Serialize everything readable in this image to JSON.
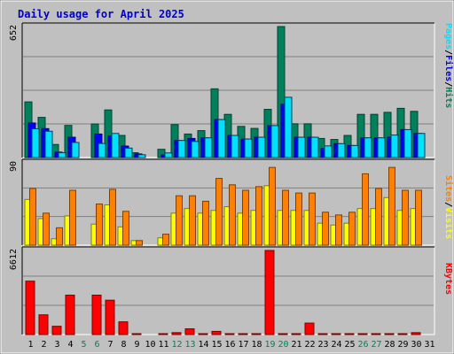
{
  "title": "Daily usage for April 2025",
  "colors": {
    "background": "#c0c0c0",
    "frame": "#808080",
    "title": "#0000ff",
    "grid": "#808080",
    "hits": "#00805c",
    "files": "#0000ff",
    "pages": "#00e0ff",
    "visits": "#ffff00",
    "sites": "#ff8000",
    "kbytes": "#ff0000",
    "weekend_day": "#00805c",
    "weekday": "#000000"
  },
  "chart_data": [
    {
      "type": "bar",
      "panel": "hits-files-pages",
      "ylabel_max": "652",
      "ylim": [
        0,
        652
      ],
      "legend": [
        "Pages",
        "Files",
        "Hits"
      ],
      "categories": [
        "1",
        "2",
        "3",
        "4",
        "5",
        "6",
        "7",
        "8",
        "9",
        "10",
        "11",
        "12",
        "13",
        "14",
        "15",
        "16",
        "17",
        "18",
        "19",
        "20",
        "21",
        "22",
        "23",
        "24",
        "25",
        "26",
        "27",
        "28",
        "29",
        "30",
        "31"
      ],
      "series": [
        {
          "name": "Hits",
          "values": [
            277,
            200,
            65,
            160,
            0,
            167,
            237,
            110,
            24,
            0,
            41,
            164,
            117,
            134,
            342,
            215,
            155,
            145,
            240,
            652,
            168,
            168,
            95,
            90,
            110,
            215,
            215,
            225,
            245,
            230,
            0
          ]
        },
        {
          "name": "Files",
          "values": [
            172,
            144,
            27,
            101,
            0,
            117,
            107,
            57,
            18,
            0,
            13,
            85,
            95,
            98,
            189,
            110,
            92,
            101,
            159,
            265,
            101,
            101,
            45,
            69,
            60,
            98,
            98,
            101,
            139,
            120,
            0
          ]
        },
        {
          "name": "Pages",
          "values": [
            143,
            131,
            24,
            75,
            0,
            70,
            120,
            47,
            14,
            0,
            23,
            85,
            80,
            98,
            189,
            110,
            92,
            101,
            159,
            300,
            101,
            101,
            58,
            69,
            60,
            98,
            98,
            112,
            139,
            120,
            0
          ]
        }
      ]
    },
    {
      "type": "bar",
      "panel": "visits-sites",
      "ylabel_max": "90",
      "ylim": [
        0,
        90
      ],
      "legend": [
        "Sites",
        "Visits"
      ],
      "categories": [
        "1",
        "2",
        "3",
        "4",
        "5",
        "6",
        "7",
        "8",
        "9",
        "10",
        "11",
        "12",
        "13",
        "14",
        "15",
        "16",
        "17",
        "18",
        "19",
        "20",
        "21",
        "22",
        "23",
        "24",
        "25",
        "26",
        "27",
        "28",
        "29",
        "30",
        "31"
      ],
      "series": [
        {
          "name": "Visits",
          "values": [
            50,
            29,
            7,
            32,
            0,
            23,
            44,
            20,
            5,
            0,
            8,
            35,
            40,
            35,
            38,
            42,
            35,
            38,
            65,
            38,
            38,
            38,
            24,
            22,
            24,
            40,
            40,
            52,
            38,
            40,
            0
          ]
        },
        {
          "name": "Sites",
          "values": [
            62,
            35,
            19,
            60,
            0,
            45,
            61,
            37,
            5,
            0,
            12,
            54,
            54,
            48,
            73,
            66,
            60,
            64,
            85,
            60,
            57,
            57,
            36,
            33,
            36,
            78,
            62,
            85,
            60,
            60,
            0
          ]
        }
      ]
    },
    {
      "type": "bar",
      "panel": "kbytes",
      "ylabel_max": "6612",
      "ylim": [
        0,
        6612
      ],
      "legend": [
        "KBytes"
      ],
      "categories": [
        "1",
        "2",
        "3",
        "4",
        "5",
        "6",
        "7",
        "8",
        "9",
        "10",
        "11",
        "12",
        "13",
        "14",
        "15",
        "16",
        "17",
        "18",
        "19",
        "20",
        "21",
        "22",
        "23",
        "24",
        "25",
        "26",
        "27",
        "28",
        "29",
        "30",
        "31"
      ],
      "series": [
        {
          "name": "KBytes",
          "values": [
            4200,
            1550,
            650,
            3100,
            0,
            3100,
            2700,
            1000,
            60,
            0,
            60,
            150,
            450,
            60,
            250,
            60,
            60,
            60,
            6612,
            60,
            60,
            900,
            60,
            60,
            60,
            60,
            60,
            60,
            60,
            150,
            0
          ]
        }
      ]
    }
  ],
  "weekend_days": [
    5,
    6,
    12,
    13,
    19,
    20,
    26,
    27
  ]
}
